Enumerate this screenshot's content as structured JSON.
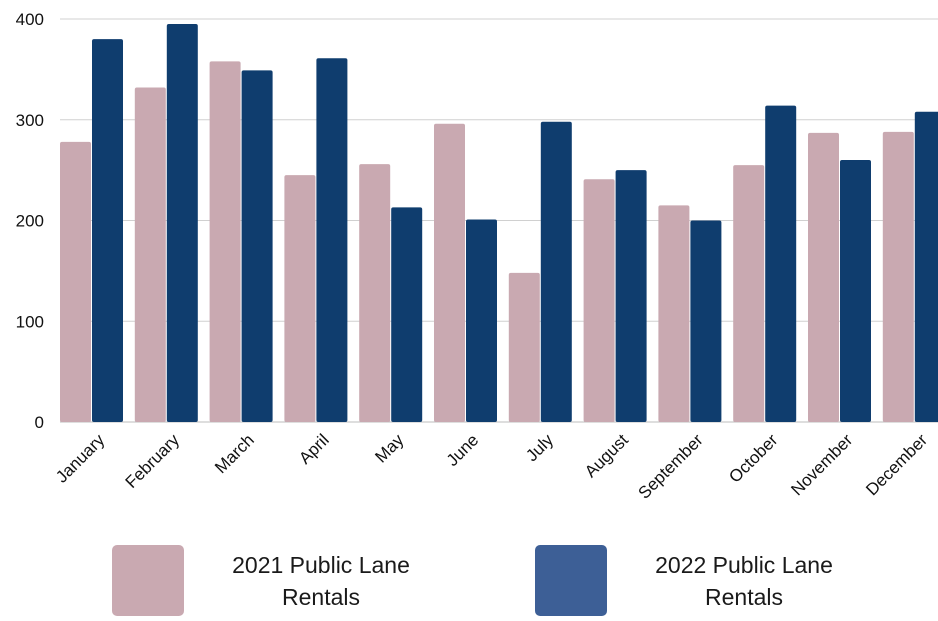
{
  "chart_data": {
    "type": "bar",
    "title": "",
    "xlabel": "",
    "ylabel": "",
    "ylim": [
      0,
      400
    ],
    "yticks": [
      0,
      100,
      200,
      300,
      400
    ],
    "grid": true,
    "legend_position": "bottom",
    "categories": [
      "January",
      "February",
      "March",
      "April",
      "May",
      "June",
      "July",
      "August",
      "September",
      "October",
      "November",
      "December"
    ],
    "series": [
      {
        "name": "2021 Public Lane Rentals",
        "color": "#c9a9b1",
        "legend_color": "#c9a9b1",
        "values": [
          278,
          332,
          358,
          245,
          256,
          296,
          148,
          241,
          215,
          255,
          287,
          288
        ]
      },
      {
        "name": "2022 Public Lane Rentals",
        "color": "#0f3d6e",
        "legend_color": "#3d5f96",
        "values": [
          380,
          395,
          349,
          361,
          213,
          201,
          298,
          250,
          200,
          314,
          260,
          308
        ]
      }
    ]
  }
}
